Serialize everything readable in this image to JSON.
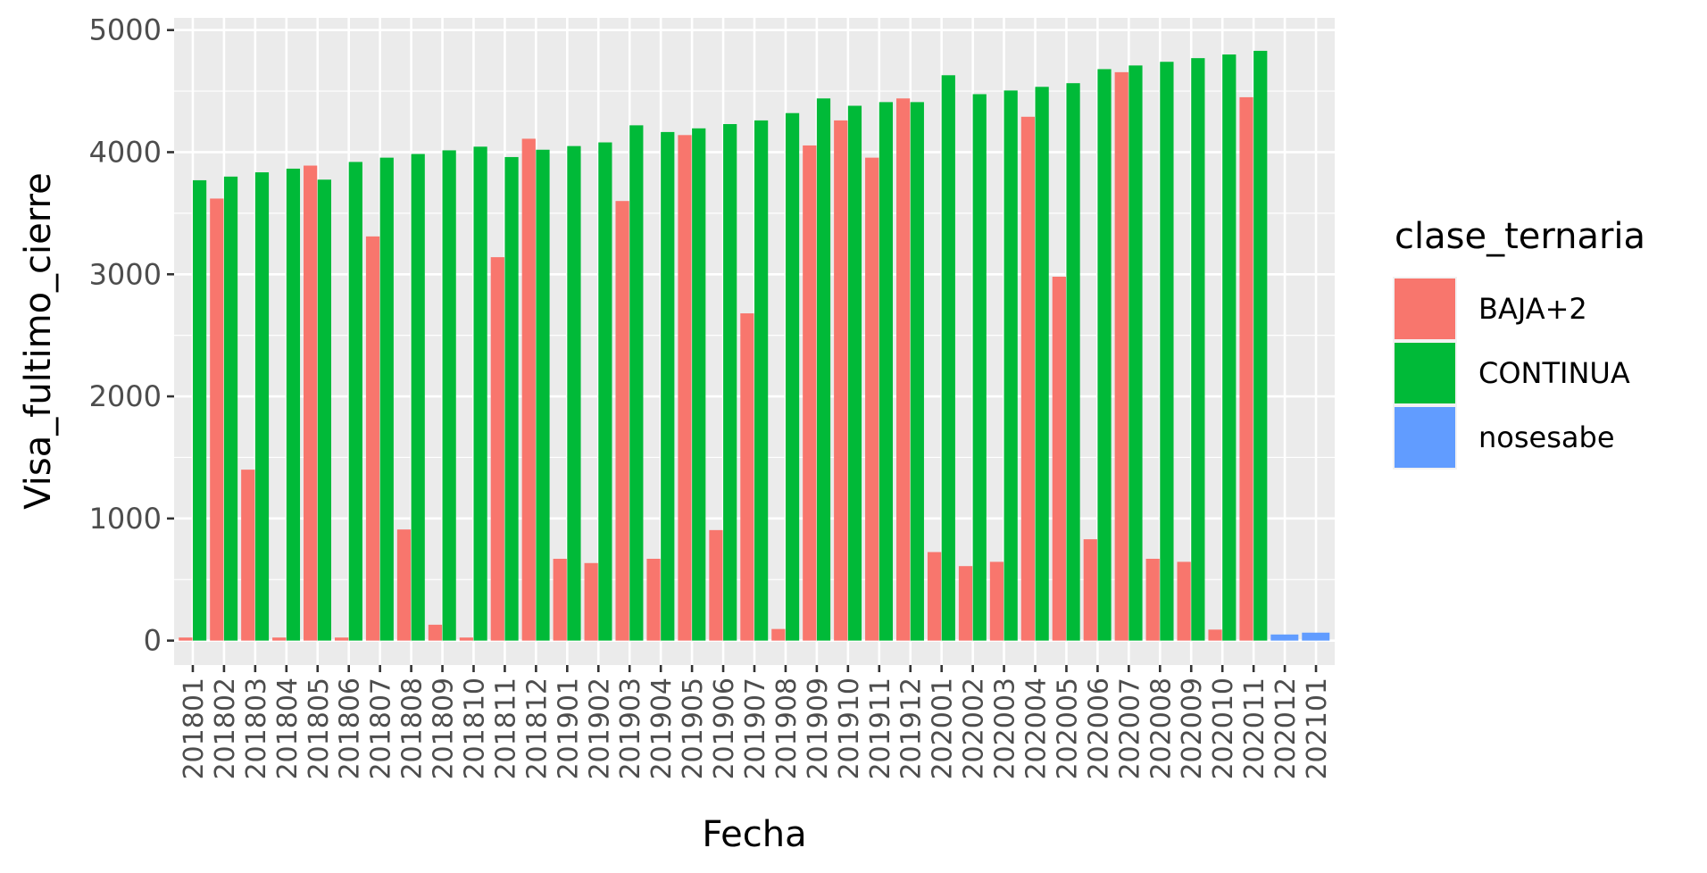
{
  "chart_data": {
    "type": "bar",
    "xlabel": "Fecha",
    "ylabel": "Visa_fultimo_cierre",
    "ylim": [
      -200,
      5100
    ],
    "yticks": [
      0,
      1000,
      2000,
      3000,
      4000,
      5000
    ],
    "grid": true,
    "legend": {
      "title": "clase_ternaria",
      "placement": "right",
      "entries": [
        {
          "name": "BAJA+2",
          "color": "#F8766D"
        },
        {
          "name": "CONTINUA",
          "color": "#00BA38"
        },
        {
          "name": "nosesabe",
          "color": "#619CFF"
        }
      ]
    },
    "categories": [
      "201801",
      "201802",
      "201803",
      "201804",
      "201805",
      "201806",
      "201807",
      "201808",
      "201809",
      "201810",
      "201811",
      "201812",
      "201901",
      "201902",
      "201903",
      "201904",
      "201905",
      "201906",
      "201907",
      "201908",
      "201909",
      "201910",
      "201911",
      "201912",
      "202001",
      "202002",
      "202003",
      "202004",
      "202005",
      "202006",
      "202007",
      "202008",
      "202009",
      "202010",
      "202011",
      "202012",
      "202101"
    ],
    "series": [
      {
        "name": "BAJA+2",
        "color": "#F8766D",
        "values": [
          25,
          3620,
          1400,
          25,
          3890,
          25,
          3310,
          910,
          130,
          25,
          3140,
          4110,
          670,
          635,
          3600,
          670,
          4140,
          905,
          2680,
          95,
          4055,
          4260,
          3955,
          4440,
          725,
          610,
          645,
          4290,
          2980,
          830,
          4655,
          670,
          645,
          90,
          4450,
          null,
          null
        ]
      },
      {
        "name": "CONTINUA",
        "color": "#00BA38",
        "values": [
          3770,
          3800,
          3835,
          3865,
          3775,
          3920,
          3955,
          3985,
          4015,
          4045,
          3960,
          4020,
          4050,
          4080,
          4220,
          4165,
          4195,
          4230,
          4260,
          4320,
          4440,
          4380,
          4410,
          4410,
          4630,
          4475,
          4505,
          4535,
          4565,
          4680,
          4710,
          4740,
          4770,
          4800,
          4830,
          null,
          null
        ]
      },
      {
        "name": "nosesabe",
        "color": "#619CFF",
        "values": [
          null,
          null,
          null,
          null,
          null,
          null,
          null,
          null,
          null,
          null,
          null,
          null,
          null,
          null,
          null,
          null,
          null,
          null,
          null,
          null,
          null,
          null,
          null,
          null,
          null,
          null,
          null,
          null,
          null,
          null,
          null,
          null,
          null,
          null,
          null,
          50,
          65
        ]
      }
    ]
  }
}
